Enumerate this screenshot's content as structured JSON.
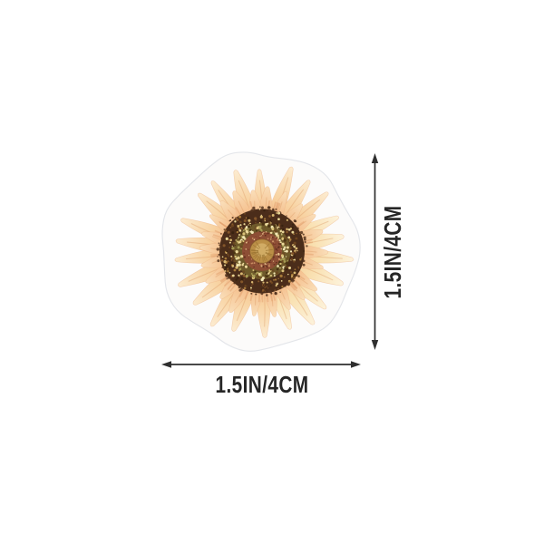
{
  "canvas": {
    "background": "#ffffff"
  },
  "sticker": {
    "name": "watercolor-sunflower-die-cut-sticker",
    "description": "Round watercolor sunflower sticker with wavy white die-cut border",
    "palette": {
      "border": "#fcfbfa",
      "border_edge": "#e4e6ea",
      "petal_base": "#f1af80",
      "petal_mid": "#f8d3a2",
      "petal_tip": "#fcecd1",
      "petal_inner_base": "#eca272",
      "petal_inner_mid": "#f5c392",
      "petal_inner_tip": "#fadfba",
      "petal_pale_base": "#f3c48b",
      "petal_pale_mid": "#f9e0b0",
      "petal_pale_tip": "#fdf3dc",
      "disc_dark": "#4b2d1a",
      "disc_olive": "#6e5a2b",
      "disc_maroon": "#8d4e35",
      "disc_gold": "#bb8f47",
      "disc_gold_light": "#d4af68"
    }
  },
  "dimensions": {
    "width": {
      "label": "1.5IN/4CM"
    },
    "height": {
      "label": "1.5IN/4CM"
    },
    "line_color": "#2f2f2f",
    "label_color": "#262626"
  }
}
